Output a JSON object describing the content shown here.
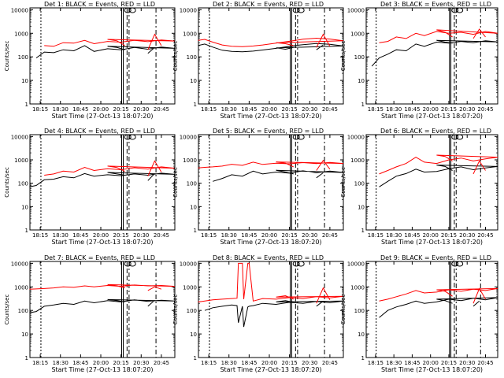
{
  "figure": {
    "start_time_label": "Start Time (27-Oct-13 18:07:20)",
    "ylabel": "Counts/sec"
  },
  "colors": {
    "events": "#000000",
    "lld": "#ff0000",
    "frame": "#000000"
  },
  "chart_data": [
    {
      "type": "line",
      "title": "Det 1: BLACK = Events, RED = LLD",
      "xlabel": "Start Time (27-Oct-13 18:07:20)",
      "ylabel": "Counts/sec",
      "xlim": [
        "18:07:20",
        "20:55:00"
      ],
      "ylim": [
        1,
        12000
      ],
      "yscale": "log",
      "grid": false,
      "x_ticks": [
        "18:15",
        "18:30",
        "18:45",
        "20:00",
        "20:15",
        "20:30",
        "20:45"
      ],
      "y_ticks": [
        "1",
        "10",
        "100",
        "1000",
        "10000"
      ],
      "x": [
        "18:12",
        "18:18",
        "18:25",
        "18:32",
        "18:40",
        "18:48",
        "18:55",
        "19:05",
        "19:15",
        "19:25",
        "19:35",
        "19:45",
        "19:55",
        "20:05",
        "20:12",
        "20:18",
        "20:22",
        "20:30",
        "20:35",
        "20:40",
        "20:45",
        "20:48"
      ],
      "series": [
        {
          "name": "Events",
          "values": [
            90,
            160,
            150,
            200,
            180,
            300,
            170,
            220,
            200,
            250,
            210,
            260,
            230,
            280,
            250,
            200,
            null,
            null,
            140,
            250,
            null,
            null
          ]
        },
        {
          "name": "LLD",
          "values": [
            null,
            300,
            280,
            400,
            380,
            500,
            360,
            450,
            420,
            500,
            440,
            520,
            470,
            550,
            480,
            300,
            null,
            null,
            200,
            900,
            300,
            null
          ]
        }
      ]
    },
    {
      "type": "line",
      "title": "Det 2: BLACK = Events, RED = LLD",
      "xlabel": "Start Time (27-Oct-13 18:07:20)",
      "ylabel": "Counts/sec",
      "xlim": [
        "18:07:20",
        "20:55:00"
      ],
      "ylim": [
        1,
        12000
      ],
      "yscale": "log",
      "grid": false,
      "x_ticks": [
        "18:15",
        "18:30",
        "18:45",
        "20:00",
        "20:15",
        "20:30",
        "20:45"
      ],
      "y_ticks": [
        "1",
        "10",
        "100",
        "1000",
        "10000"
      ],
      "x": [
        "18:07",
        "18:12",
        "18:18",
        "18:25",
        "18:32",
        "18:40",
        "18:48",
        "18:55",
        "19:05",
        "19:15",
        "19:25",
        "19:35",
        "19:45",
        "19:55",
        "20:05",
        "20:12",
        "20:18",
        "20:22",
        "20:30",
        "20:35",
        "20:40",
        "20:45",
        "20:48"
      ],
      "series": [
        {
          "name": "Events",
          "values": [
            300,
            350,
            260,
            190,
            170,
            165,
            175,
            195,
            230,
            280,
            330,
            370,
            340,
            290,
            240,
            210,
            250,
            null,
            null,
            200,
            320,
            null,
            null
          ]
        },
        {
          "name": "LLD",
          "values": [
            500,
            550,
            420,
            320,
            280,
            270,
            290,
            320,
            380,
            460,
            560,
            620,
            570,
            480,
            400,
            360,
            300,
            null,
            null,
            250,
            900,
            280,
            null
          ]
        }
      ]
    },
    {
      "type": "line",
      "title": "Det 3: BLACK = Events, RED = LLD",
      "xlabel": "Start Time (27-Oct-13 18:07:20)",
      "ylabel": "Counts/sec",
      "xlim": [
        "18:07:20",
        "20:55:00"
      ],
      "ylim": [
        1,
        12000
      ],
      "yscale": "log",
      "grid": false,
      "x_ticks": [
        "18:15",
        "18:30",
        "18:45",
        "20:00",
        "20:15",
        "20:30",
        "20:45"
      ],
      "y_ticks": [
        "1",
        "10",
        "100",
        "1000",
        "10000"
      ],
      "x": [
        "18:12",
        "18:18",
        "18:25",
        "18:32",
        "18:40",
        "18:48",
        "18:55",
        "19:05",
        "19:15",
        "19:25",
        "19:35",
        "19:45",
        "19:55",
        "20:05",
        "20:12",
        "20:18",
        "20:22",
        "20:30",
        "20:35",
        "20:40",
        "20:45",
        "20:48"
      ],
      "series": [
        {
          "name": "Events",
          "values": [
            40,
            90,
            130,
            200,
            180,
            350,
            280,
            420,
            380,
            450,
            400,
            480,
            430,
            500,
            420,
            380,
            null,
            null,
            null,
            null,
            null,
            null
          ]
        },
        {
          "name": "LLD",
          "values": [
            null,
            400,
            450,
            700,
            600,
            1000,
            800,
            1200,
            1000,
            1100,
            900,
            1200,
            1000,
            1400,
            1100,
            700,
            null,
            null,
            600,
            1500,
            700,
            null
          ]
        }
      ]
    },
    {
      "type": "line",
      "title": "Det 4: BLACK = Events, RED = LLD",
      "xlabel": "Start Time (27-Oct-13 18:07:20)",
      "ylabel": "Counts/sec",
      "xlim": [
        "18:07:20",
        "20:55:00"
      ],
      "ylim": [
        1,
        12000
      ],
      "yscale": "log",
      "grid": false,
      "x_ticks": [
        "18:15",
        "18:30",
        "18:45",
        "20:00",
        "20:15",
        "20:30",
        "20:45"
      ],
      "y_ticks": [
        "1",
        "10",
        "100",
        "1000",
        "10000"
      ],
      "x": [
        "18:07",
        "18:12",
        "18:18",
        "18:25",
        "18:32",
        "18:40",
        "18:48",
        "18:55",
        "19:05",
        "19:15",
        "19:25",
        "19:35",
        "19:45",
        "19:55",
        "20:05",
        "20:12",
        "20:18",
        "20:22",
        "20:30",
        "20:35",
        "20:40",
        "20:45",
        "20:48"
      ],
      "series": [
        {
          "name": "Events",
          "values": [
            70,
            80,
            140,
            150,
            190,
            170,
            260,
            200,
            230,
            210,
            250,
            220,
            270,
            240,
            290,
            250,
            220,
            null,
            null,
            130,
            260,
            null,
            null
          ]
        },
        {
          "name": "LLD",
          "values": [
            null,
            null,
            220,
            250,
            330,
            300,
            480,
            350,
            420,
            380,
            460,
            400,
            500,
            440,
            540,
            470,
            320,
            null,
            null,
            200,
            900,
            300,
            null
          ]
        }
      ]
    },
    {
      "type": "line",
      "title": "Det 5: BLACK = Events, RED = LLD",
      "xlabel": "Start Time (27-Oct-13 18:07:20)",
      "ylabel": "Counts/sec",
      "xlim": [
        "18:07:20",
        "20:55:00"
      ],
      "ylim": [
        1,
        12000
      ],
      "yscale": "log",
      "grid": false,
      "x_ticks": [
        "18:15",
        "18:30",
        "18:45",
        "20:00",
        "20:15",
        "20:30",
        "20:45"
      ],
      "y_ticks": [
        "1",
        "10",
        "100",
        "1000",
        "10000"
      ],
      "x": [
        "18:07",
        "18:12",
        "18:18",
        "18:25",
        "18:32",
        "18:40",
        "18:48",
        "18:55",
        "19:05",
        "19:15",
        "19:25",
        "19:35",
        "19:45",
        "19:55",
        "20:05",
        "20:12",
        "20:18",
        "20:22",
        "20:30",
        "20:35",
        "20:40",
        "20:45",
        "20:48"
      ],
      "series": [
        {
          "name": "Events",
          "values": [
            null,
            null,
            120,
            160,
            230,
            200,
            330,
            250,
            300,
            270,
            340,
            280,
            330,
            290,
            360,
            300,
            250,
            null,
            null,
            170,
            280,
            null,
            null
          ]
        },
        {
          "name": "LLD",
          "values": [
            450,
            480,
            500,
            540,
            650,
            580,
            800,
            640,
            720,
            680,
            760,
            690,
            780,
            700,
            820,
            720,
            500,
            null,
            null,
            350,
            950,
            400,
            null
          ]
        }
      ]
    },
    {
      "type": "line",
      "title": "Det 6: BLACK = Events, RED = LLD",
      "xlabel": "Start Time (27-Oct-13 18:07:20)",
      "ylabel": "Counts/sec",
      "xlim": [
        "18:07:20",
        "20:55:00"
      ],
      "ylim": [
        1,
        12000
      ],
      "yscale": "log",
      "grid": false,
      "x_ticks": [
        "18:15",
        "18:30",
        "18:45",
        "20:00",
        "20:15",
        "20:30",
        "20:45"
      ],
      "y_ticks": [
        "1",
        "10",
        "100",
        "1000",
        "10000"
      ],
      "x": [
        "18:12",
        "18:18",
        "18:25",
        "18:32",
        "18:40",
        "18:48",
        "18:55",
        "19:05",
        "19:15",
        "19:25",
        "19:35",
        "19:45",
        "19:55",
        "20:05",
        "20:12",
        "20:18",
        "20:22",
        "20:30",
        "20:35",
        "20:40",
        "20:45",
        "20:48"
      ],
      "series": [
        {
          "name": "Events",
          "values": [
            null,
            70,
            120,
            200,
            260,
            400,
            300,
            320,
            420,
            500,
            380,
            450,
            520,
            600,
            520,
            350,
            null,
            null,
            null,
            null,
            null,
            null
          ]
        },
        {
          "name": "LLD",
          "values": [
            null,
            250,
            350,
            500,
            700,
            1300,
            800,
            700,
            1000,
            1200,
            900,
            1100,
            1300,
            1600,
            1400,
            900,
            null,
            null,
            250,
            900,
            350,
            null
          ]
        }
      ]
    },
    {
      "type": "line",
      "title": "Det 7: BLACK = Events, RED = LLD",
      "xlabel": "Start Time (27-Oct-13 18:07:20)",
      "ylabel": "Counts/sec",
      "xlim": [
        "18:07:20",
        "20:55:00"
      ],
      "ylim": [
        1,
        12000
      ],
      "yscale": "log",
      "grid": false,
      "x_ticks": [
        "18:15",
        "18:30",
        "18:45",
        "20:00",
        "20:15",
        "20:30",
        "20:45"
      ],
      "y_ticks": [
        "1",
        "10",
        "100",
        "1000",
        "10000"
      ],
      "x": [
        "18:07",
        "18:12",
        "18:18",
        "18:25",
        "18:32",
        "18:40",
        "18:48",
        "18:55",
        "19:05",
        "19:15",
        "19:25",
        "19:35",
        "19:45",
        "19:55",
        "20:05",
        "20:12",
        "20:18",
        "20:22",
        "20:30",
        "20:35",
        "20:40",
        "20:45",
        "20:48"
      ],
      "series": [
        {
          "name": "Events",
          "values": [
            80,
            90,
            150,
            170,
            200,
            180,
            250,
            210,
            260,
            230,
            280,
            240,
            270,
            250,
            290,
            260,
            230,
            null,
            null,
            150,
            270,
            null,
            null
          ]
        },
        {
          "name": "LLD",
          "values": [
            800,
            820,
            850,
            900,
            1000,
            950,
            1100,
            1000,
            1150,
            1050,
            1200,
            1100,
            1150,
            1050,
            1250,
            1100,
            900,
            null,
            null,
            700,
            1000,
            800,
            null
          ]
        }
      ]
    },
    {
      "type": "line",
      "title": "Det 8: BLACK = Events, RED = LLD",
      "xlabel": "Start Time (27-Oct-13 18:07:20)",
      "ylabel": "Counts/sec",
      "xlim": [
        "18:07:20",
        "20:55:00"
      ],
      "ylim": [
        1,
        12000
      ],
      "yscale": "log",
      "grid": false,
      "x_ticks": [
        "18:15",
        "18:30",
        "18:45",
        "20:00",
        "20:15",
        "20:30",
        "20:45"
      ],
      "y_ticks": [
        "1",
        "10",
        "100",
        "1000",
        "10000"
      ],
      "x": [
        "18:07",
        "18:12",
        "18:18",
        "18:25",
        "18:32",
        "18:36",
        "18:37",
        "18:40",
        "18:41",
        "18:44",
        "18:45",
        "18:48",
        "18:55",
        "19:05",
        "19:15",
        "19:25",
        "19:35",
        "19:45",
        "19:55",
        "20:05",
        "20:12",
        "20:18",
        "20:22",
        "20:30",
        "20:35",
        "20:40",
        "20:45",
        "20:48"
      ],
      "series": [
        {
          "name": "Events",
          "values": [
            null,
            100,
            130,
            150,
            170,
            160,
            30,
            150,
            20,
            140,
            150,
            160,
            200,
            180,
            220,
            200,
            240,
            210,
            250,
            230,
            260,
            220,
            null,
            null,
            150,
            250,
            null,
            null
          ]
        },
        {
          "name": "LLD",
          "values": [
            230,
            250,
            280,
            300,
            320,
            330,
            10000,
            10000,
            300,
            10000,
            10000,
            250,
            320,
            300,
            350,
            320,
            380,
            340,
            400,
            370,
            420,
            300,
            null,
            null,
            200,
            900,
            280,
            null
          ]
        }
      ]
    },
    {
      "type": "line",
      "title": "Det 9: BLACK = Events, RED = LLD",
      "xlabel": "Start Time (27-Oct-13 18:07:20)",
      "ylabel": "Counts/sec",
      "xlim": [
        "18:07:20",
        "20:55:00"
      ],
      "ylim": [
        1,
        12000
      ],
      "yscale": "log",
      "grid": false,
      "x_ticks": [
        "18:15",
        "18:30",
        "18:45",
        "20:00",
        "20:15",
        "20:30",
        "20:45"
      ],
      "y_ticks": [
        "1",
        "10",
        "100",
        "1000",
        "10000"
      ],
      "x": [
        "18:12",
        "18:18",
        "18:25",
        "18:32",
        "18:40",
        "18:48",
        "18:55",
        "19:05",
        "19:15",
        "19:25",
        "19:35",
        "19:45",
        "19:55",
        "20:05",
        "20:12",
        "20:18",
        "20:22",
        "20:30",
        "20:35",
        "20:40",
        "20:45",
        "20:48"
      ],
      "series": [
        {
          "name": "Events",
          "values": [
            null,
            50,
            100,
            140,
            180,
            250,
            200,
            230,
            300,
            260,
            330,
            280,
            350,
            300,
            260,
            200,
            null,
            null,
            150,
            250,
            null,
            null
          ]
        },
        {
          "name": "LLD",
          "values": [
            null,
            250,
            300,
            380,
            500,
            700,
            550,
            600,
            750,
            650,
            800,
            700,
            850,
            750,
            650,
            400,
            null,
            null,
            200,
            850,
            300,
            null
          ]
        }
      ]
    }
  ]
}
